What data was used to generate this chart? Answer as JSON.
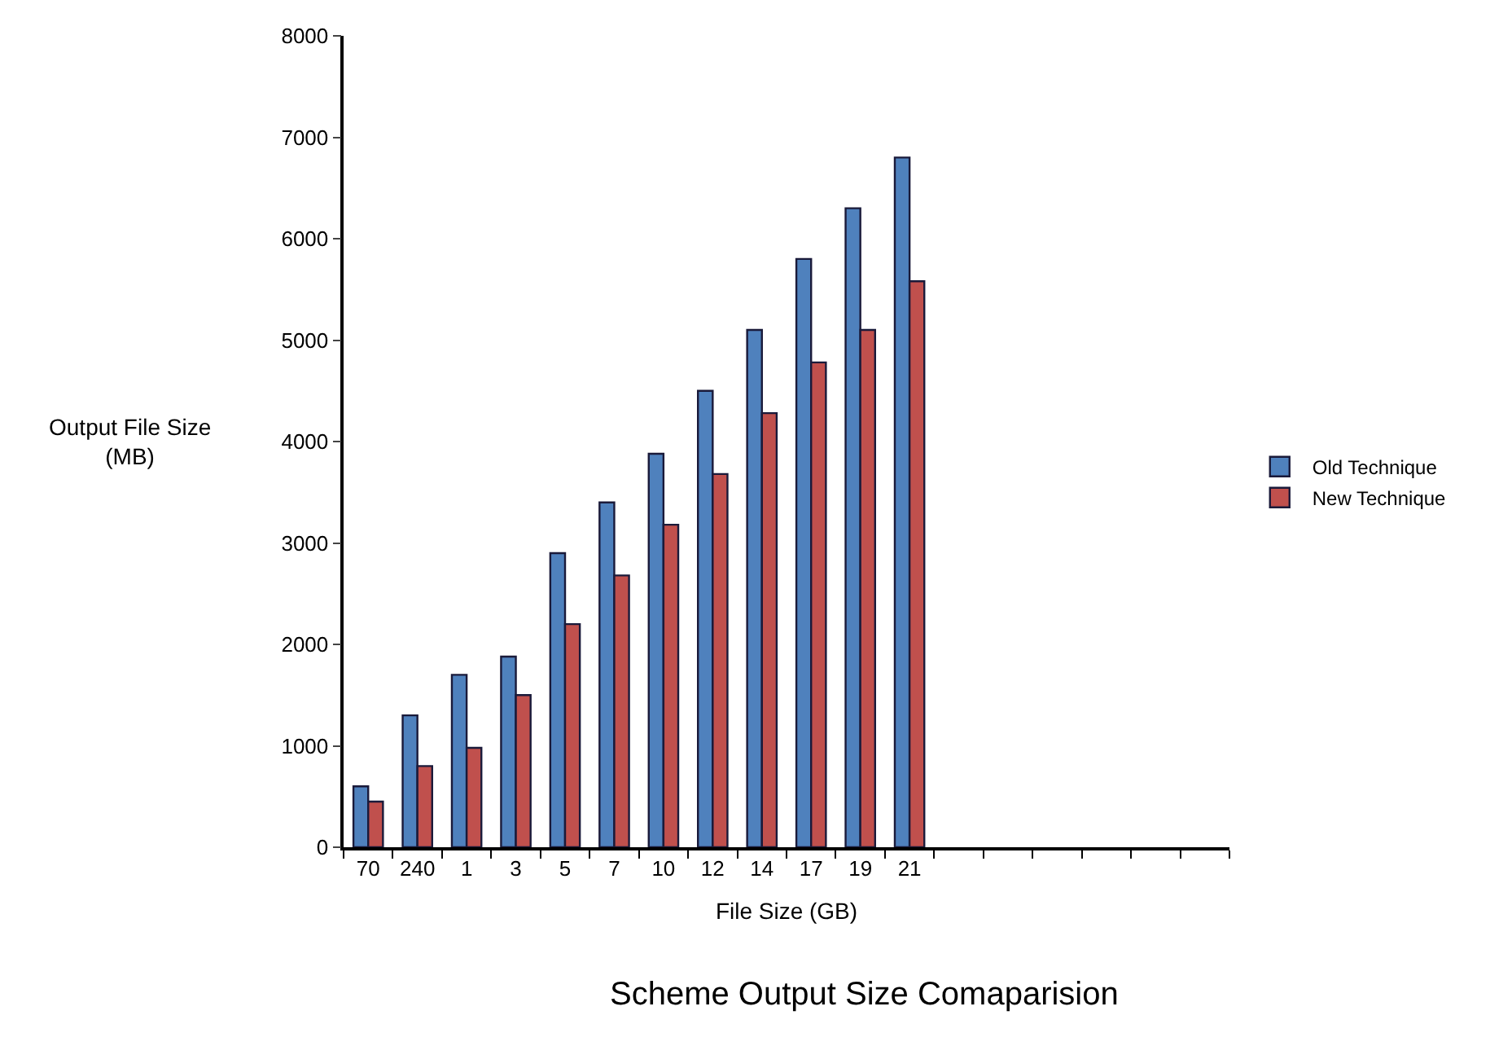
{
  "chart_data": {
    "type": "bar",
    "title": "Scheme Output Size Comaparision",
    "xlabel": "File Size (GB)",
    "ylabel": "Output File Size\n(MB)",
    "categories": [
      "70",
      "240",
      "1",
      "3",
      "5",
      "7",
      "10",
      "12",
      "14",
      "17",
      "19",
      "21",
      null,
      null,
      null,
      null,
      null,
      null
    ],
    "series": [
      {
        "name": "Old Technique",
        "color": "#4f81bd",
        "values": [
          600,
          1300,
          1700,
          1880,
          2900,
          3400,
          3880,
          4500,
          5100,
          5800,
          6300,
          6800,
          null,
          null,
          null,
          null,
          null,
          null
        ]
      },
      {
        "name": "New Technique",
        "color": "#c0504d",
        "values": [
          450,
          800,
          980,
          1500,
          2200,
          2680,
          3180,
          3680,
          4280,
          4780,
          5100,
          5580,
          null,
          null,
          null,
          null,
          null,
          null
        ]
      }
    ],
    "ylim": [
      0,
      8000
    ],
    "yticks": [
      0,
      1000,
      2000,
      3000,
      4000,
      5000,
      6000,
      7000,
      8000
    ],
    "legend": "right"
  }
}
